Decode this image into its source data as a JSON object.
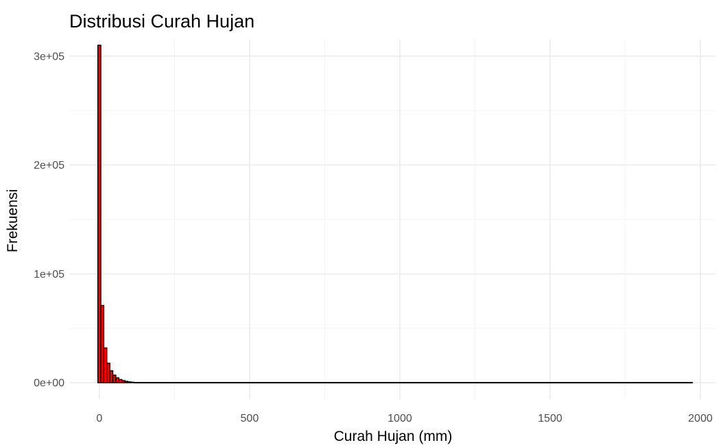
{
  "chart_data": {
    "type": "bar",
    "subtype": "histogram",
    "title": "Distribusi Curah Hujan",
    "xlabel": "Curah Hujan (mm)",
    "ylabel": "Frekuensi",
    "xlim": [
      -100,
      2050
    ],
    "ylim": [
      -15000,
      315000
    ],
    "x_ticks": [
      0,
      500,
      1000,
      1500,
      2000
    ],
    "x_tick_labels": [
      "0",
      "500",
      "1000",
      "1500",
      "2000"
    ],
    "y_ticks": [
      0,
      100000,
      200000,
      300000
    ],
    "y_tick_labels": [
      "0e+00",
      "1e+05",
      "2e+05",
      "3e+05"
    ],
    "grid": true,
    "bar_fill": "#ff0000",
    "bar_outline": "#000000",
    "bin_width": 10,
    "bins_start": [
      -5,
      5,
      15,
      25,
      35,
      45,
      55,
      65,
      75,
      85,
      95,
      105
    ],
    "values": [
      310000,
      71000,
      32000,
      18000,
      11000,
      7000,
      4500,
      3000,
      2000,
      1300,
      800,
      500
    ],
    "tail": {
      "from": 115,
      "to": 1975,
      "value": 0
    }
  }
}
